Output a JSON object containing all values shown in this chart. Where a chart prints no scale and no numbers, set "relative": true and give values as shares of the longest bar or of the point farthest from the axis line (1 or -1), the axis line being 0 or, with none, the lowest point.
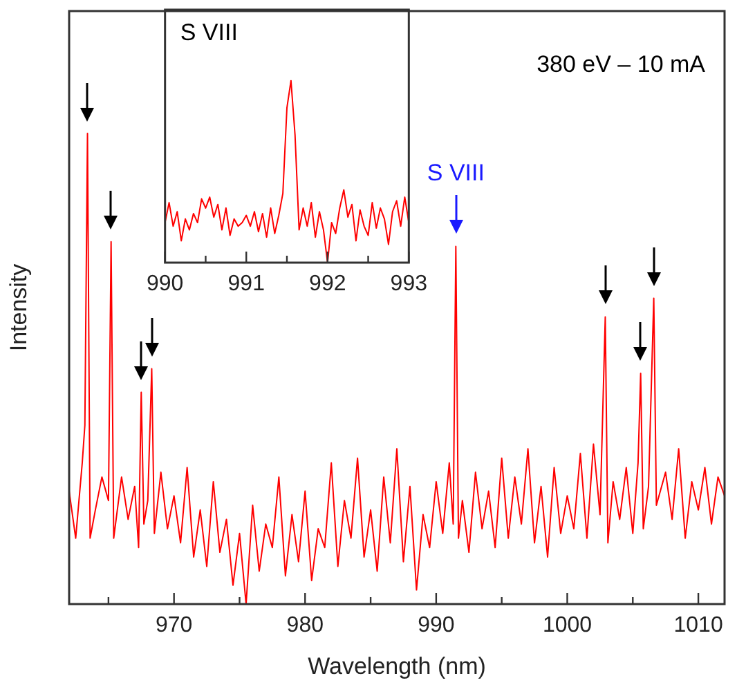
{
  "chart_data": [
    {
      "type": "line",
      "xlabel": "Wavelength (nm)",
      "ylabel": "Intensity",
      "relative": true,
      "tick_labels": "x",
      "grid": false,
      "marker": "none",
      "xlim": [
        962,
        1012
      ],
      "xticks": [
        {
          "value": 965,
          "label": null
        },
        970,
        {
          "value": 975,
          "label": null
        },
        980,
        {
          "value": 985,
          "label": null
        },
        990,
        {
          "value": 995,
          "label": null
        },
        1000,
        {
          "value": 1005,
          "label": null
        },
        1010
      ],
      "annotations": [
        "380 eV – 10 mA",
        {
          "text": "S VIII",
          "x": 991.5,
          "y": 0.76
        }
      ],
      "series": [
        {
          "color": "#ff0000",
          "x": [
            962,
            962.5,
            963,
            963.2,
            963.4,
            963.6,
            964,
            964.5,
            965,
            965.2,
            965.4,
            966,
            966.5,
            967,
            967.3,
            967.5,
            967.7,
            968,
            968.3,
            968.5,
            969,
            969.5,
            970,
            970.5,
            971,
            971.5,
            972,
            972.5,
            973,
            973.5,
            974,
            974.5,
            975,
            975.5,
            976,
            976.5,
            977,
            977.5,
            978,
            978.5,
            979,
            979.5,
            980,
            980.5,
            981,
            981.5,
            982,
            982.5,
            983,
            983.5,
            984,
            984.5,
            985,
            985.5,
            986,
            986.5,
            987,
            987.5,
            988,
            988.5,
            989,
            989.5,
            990,
            990.5,
            991,
            991.3,
            991.5,
            991.7,
            992,
            992.5,
            993,
            993.5,
            994,
            994.5,
            995,
            995.5,
            996,
            996.5,
            997,
            997.5,
            998,
            998.5,
            999,
            999.5,
            1000,
            1000.5,
            1001,
            1001.5,
            1002,
            1002.5,
            1002.9,
            1003.1,
            1003.5,
            1004,
            1004.5,
            1005,
            1005.4,
            1005.6,
            1005.8,
            1006.2,
            1006.6,
            1006.8,
            1007.5,
            1008,
            1008.5,
            1009,
            1009.5,
            1010,
            1010.5,
            1011,
            1011.5,
            1012
          ],
          "values": [
            0.24,
            0.14,
            0.3,
            0.38,
            1.0,
            0.14,
            0.2,
            0.27,
            0.22,
            0.77,
            0.14,
            0.27,
            0.18,
            0.25,
            0.12,
            0.45,
            0.17,
            0.22,
            0.5,
            0.15,
            0.28,
            0.16,
            0.23,
            0.13,
            0.29,
            0.1,
            0.2,
            0.08,
            0.26,
            0.11,
            0.18,
            0.04,
            0.15,
            0.0,
            0.21,
            0.07,
            0.17,
            0.12,
            0.27,
            0.06,
            0.19,
            0.09,
            0.24,
            0.05,
            0.16,
            0.12,
            0.3,
            0.08,
            0.22,
            0.14,
            0.31,
            0.1,
            0.2,
            0.07,
            0.27,
            0.13,
            0.33,
            0.09,
            0.25,
            0.03,
            0.19,
            0.12,
            0.26,
            0.15,
            0.3,
            0.17,
            0.76,
            0.14,
            0.22,
            0.11,
            0.28,
            0.16,
            0.24,
            0.12,
            0.31,
            0.14,
            0.27,
            0.17,
            0.33,
            0.13,
            0.25,
            0.1,
            0.29,
            0.15,
            0.23,
            0.16,
            0.32,
            0.14,
            0.34,
            0.19,
            0.61,
            0.13,
            0.26,
            0.18,
            0.29,
            0.15,
            0.3,
            0.49,
            0.16,
            0.25,
            0.65,
            0.21,
            0.28,
            0.18,
            0.33,
            0.14,
            0.26,
            0.2,
            0.29,
            0.17,
            0.27,
            0.23
          ]
        }
      ]
    },
    {
      "type": "line",
      "title": "S VIII",
      "relative": true,
      "tick_labels": "x",
      "grid": false,
      "marker": "none",
      "xlim": [
        990,
        993
      ],
      "xticks": [
        990,
        {
          "value": 990.5,
          "label": null
        },
        991,
        {
          "value": 991.5,
          "label": null
        },
        992,
        {
          "value": 992.5,
          "label": null
        },
        993
      ],
      "series": [
        {
          "color": "#ff0000",
          "x": [
            990,
            990.05,
            990.1,
            990.15,
            990.2,
            990.25,
            990.3,
            990.35,
            990.4,
            990.45,
            990.5,
            990.55,
            990.6,
            990.65,
            990.7,
            990.75,
            990.8,
            990.85,
            990.9,
            990.95,
            991,
            991.05,
            991.1,
            991.15,
            991.2,
            991.25,
            991.3,
            991.35,
            991.4,
            991.45,
            991.5,
            991.55,
            991.6,
            991.65,
            991.7,
            991.75,
            991.8,
            991.85,
            991.9,
            991.95,
            992,
            992.05,
            992.1,
            992.15,
            992.2,
            992.25,
            992.3,
            992.35,
            992.4,
            992.45,
            992.5,
            992.55,
            992.6,
            992.65,
            992.7,
            992.75,
            992.8,
            992.85,
            992.9,
            992.95,
            993
          ],
          "values": [
            0.22,
            0.33,
            0.2,
            0.28,
            0.12,
            0.24,
            0.18,
            0.27,
            0.22,
            0.35,
            0.3,
            0.36,
            0.25,
            0.32,
            0.18,
            0.3,
            0.15,
            0.24,
            0.2,
            0.22,
            0.26,
            0.2,
            0.28,
            0.17,
            0.27,
            0.14,
            0.3,
            0.16,
            0.26,
            0.38,
            0.85,
            1.0,
            0.7,
            0.18,
            0.3,
            0.2,
            0.33,
            0.14,
            0.28,
            0.18,
            0.0,
            0.22,
            0.16,
            0.3,
            0.4,
            0.25,
            0.32,
            0.12,
            0.29,
            0.2,
            0.15,
            0.33,
            0.19,
            0.3,
            0.24,
            0.1,
            0.28,
            0.34,
            0.2,
            0.36,
            0.22
          ]
        }
      ]
    }
  ]
}
